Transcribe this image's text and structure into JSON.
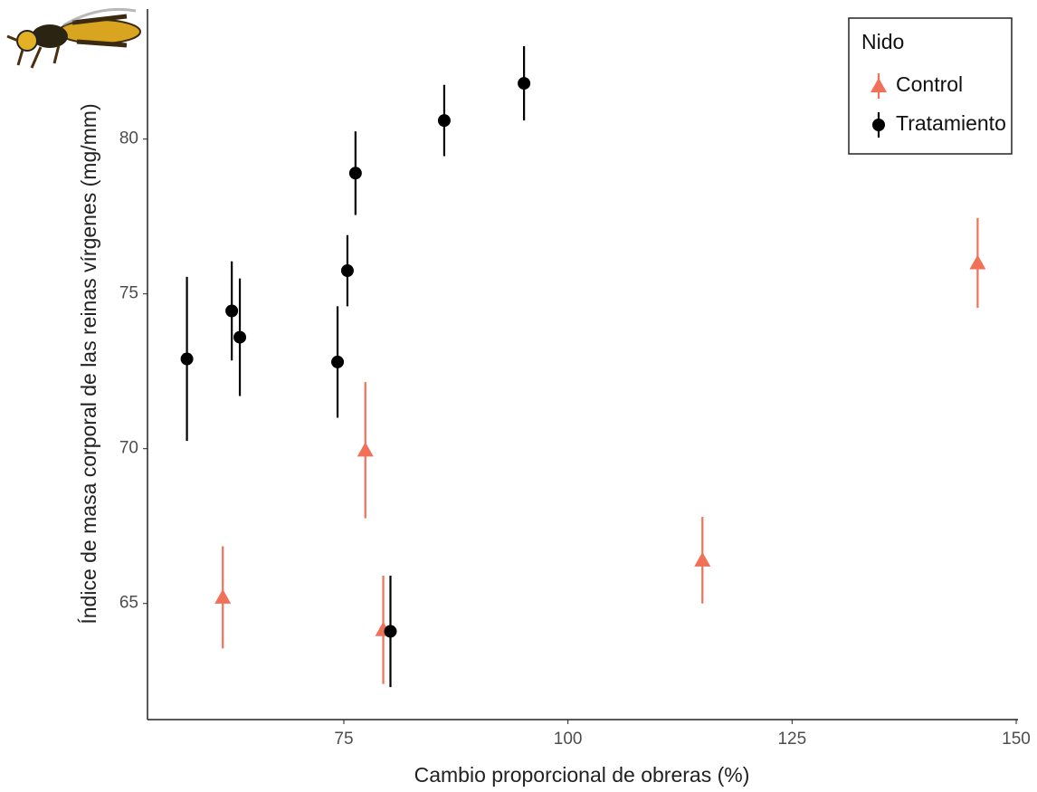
{
  "chart_data": {
    "type": "scatter",
    "xlabel": "Cambio proporcional de obreras (%)",
    "ylabel": "Índice de masa corporal de las reinas vírgenes (mg/mm)",
    "xlim": [
      53.1,
      150.2
    ],
    "xticks": [
      75,
      100,
      125,
      150
    ],
    "ylim": [
      61.25,
      84.2
    ],
    "yticks": [
      65,
      70,
      75,
      80
    ],
    "legend_title": "Nido",
    "legend": "top-right",
    "grid": false,
    "series": [
      {
        "name": "Control",
        "color": "#f07158",
        "marker": "triangle",
        "x": [
          61.5,
          77.4,
          79.4,
          115.0,
          145.7
        ],
        "values": [
          65.2,
          69.95,
          64.15,
          66.4,
          76.0
        ],
        "errors": [
          1.65,
          2.2,
          1.75,
          1.4,
          1.45
        ]
      },
      {
        "name": "Tratamiento",
        "color": "#000000",
        "marker": "circle",
        "x": [
          57.5,
          62.5,
          63.4,
          74.3,
          75.4,
          76.3,
          86.2,
          95.1,
          80.2
        ],
        "values": [
          72.9,
          74.45,
          73.6,
          72.8,
          75.75,
          78.9,
          80.6,
          81.8,
          64.1
        ],
        "errors": [
          2.65,
          1.6,
          1.9,
          1.8,
          1.15,
          1.35,
          1.15,
          1.2,
          1.8
        ]
      }
    ]
  }
}
